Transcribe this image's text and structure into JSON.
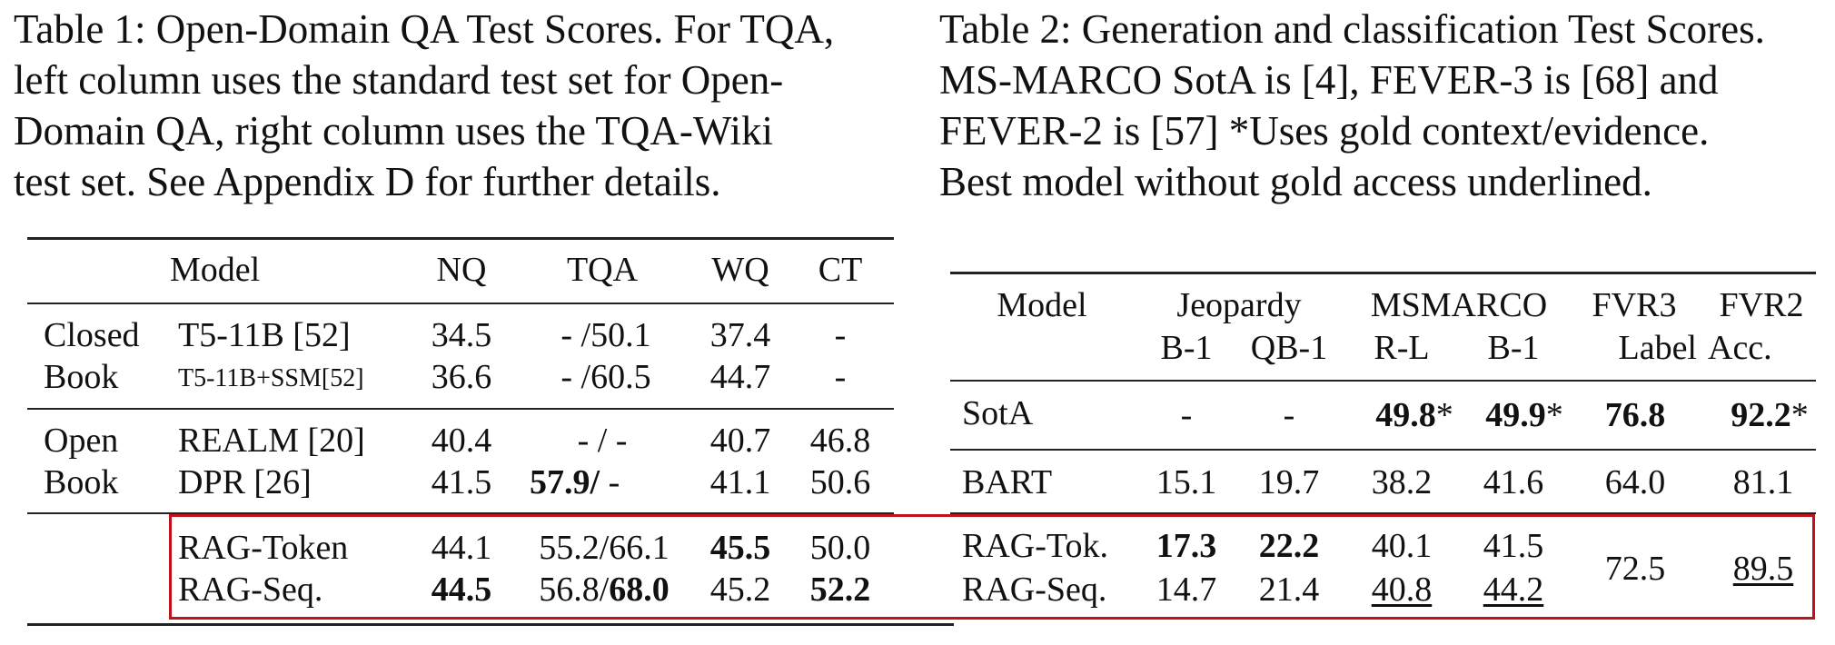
{
  "table1": {
    "caption_lines": [
      "Table 1: Open-Domain QA Test Scores. For TQA,",
      "left column uses the standard test set for Open-",
      "Domain QA, right column uses the TQA-Wiki",
      "test set. See Appendix D for further details."
    ],
    "headers": {
      "model": "Model",
      "nq": "NQ",
      "tqa": "TQA",
      "wq": "WQ",
      "ct": "CT"
    },
    "groups": {
      "closed": [
        "Closed",
        "Book"
      ],
      "open": [
        "Open",
        "Book"
      ]
    },
    "rows": [
      {
        "model": "T5-11B [52]",
        "nq": "34.5",
        "tqa": "- /50.1",
        "wq": "37.4",
        "ct": "-"
      },
      {
        "model": "T5-11B+SSM[52]",
        "nq": "36.6",
        "tqa": "- /60.5",
        "wq": "44.7",
        "ct": "-"
      },
      {
        "model": "REALM [20]",
        "nq": "40.4",
        "tqa": "- / -",
        "wq": "40.7",
        "ct": "46.8"
      },
      {
        "model": "DPR [26]",
        "nq": "41.5",
        "tqa_bold": "57.9/",
        "tqa_rest": " -",
        "wq": "41.1",
        "ct": "50.6"
      },
      {
        "model": "RAG-Token",
        "nq": "44.1",
        "tqa": "55.2/66.1",
        "wq": "45.5",
        "ct": "50.0"
      },
      {
        "model": "RAG-Seq.",
        "nq": "44.5",
        "tqa_plain": "56.8/",
        "tqa_bold": "68.0",
        "wq": "45.2",
        "ct": "52.2"
      }
    ]
  },
  "table2": {
    "caption_lines": [
      "Table 2: Generation and classification Test Scores.",
      "MS-MARCO SotA is [4], FEVER-3 is [68] and",
      "FEVER-2 is [57] *Uses gold context/evidence.",
      "Best model without gold access underlined."
    ],
    "headers": {
      "model": "Model",
      "jeopardy": "Jeopardy",
      "msmarco": "MSMARCO",
      "fvr3": "FVR3",
      "fvr2": "FVR2",
      "b1": "B-1",
      "qb1": "QB-1",
      "rl": "R-L",
      "b1b": "B-1",
      "label": "Label",
      "acc": "Acc."
    },
    "rows": [
      {
        "model": "SotA",
        "b1": "-",
        "qb1": "-",
        "rl": "49.8",
        "rl_star": "*",
        "b1b": "49.9",
        "b1b_star": "*",
        "fvr3": "76.8",
        "fvr2": "92.2",
        "fvr2_star": "*"
      },
      {
        "model": "BART",
        "b1": "15.1",
        "qb1": "19.7",
        "rl": "38.2",
        "b1b": "41.6",
        "fvr3": "64.0",
        "fvr2": "81.1"
      },
      {
        "model": "RAG-Tok.",
        "b1": "17.3",
        "qb1": "22.2",
        "rl": "40.1",
        "b1b": "41.5"
      },
      {
        "model": "RAG-Seq.",
        "b1": "14.7",
        "qb1": "21.4",
        "rl": "40.8",
        "b1b": "44.2"
      }
    ],
    "rag_fvr3": "72.5",
    "rag_fvr2": "89.5"
  }
}
